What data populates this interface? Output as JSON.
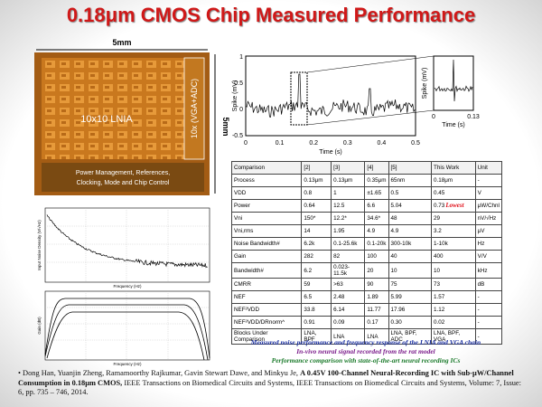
{
  "header": {
    "title": "0.18μm CMOS Chip Measured Performance"
  },
  "chip": {
    "width_label": "5mm",
    "height_label": "5mm",
    "lnia_label": "10x10 LNIA",
    "vga_label": "10x (VGA+ADC)",
    "control_label_1": "Power Management, References,",
    "control_label_2": "Clocking, Mode and Chip Control"
  },
  "spike_plot": {
    "y_label": "Spike (mV)",
    "x_label": "Time (s)",
    "yticks": [
      "1",
      "0.5",
      "0",
      "-0.5"
    ],
    "xticks": [
      "0",
      "0.1",
      "0.2",
      "0.3",
      "0.4",
      "0.5"
    ],
    "inset": {
      "y_label": "Spike (mV)",
      "x_label": "Time (s)",
      "xticks": [
        "0",
        "0.13"
      ]
    }
  },
  "noise_plot": {
    "y_label": "Input Noise Density (V/√Hz)",
    "x_label": "Frequency (Hz)"
  },
  "gain_plot": {
    "y_label": "Gain (dB)",
    "x_label": "Frequency (Hz)"
  },
  "table": {
    "header": [
      "Comparison",
      "[2]",
      "[3]",
      "[4]",
      "[5]",
      "This Work",
      "Unit"
    ],
    "rows": [
      [
        "Process",
        "0.13μm",
        "0.13μm",
        "0.35μm",
        "65nm",
        "0.18μm",
        "-"
      ],
      [
        "VDD",
        "0.8",
        "1",
        "±1.65",
        "0.5",
        "0.45",
        "V"
      ],
      [
        "Power",
        "0.64",
        "12.5",
        "6.6",
        "5.04",
        "0.73",
        "μW/Chnl"
      ],
      [
        "Vni",
        "150*",
        "12.2*",
        "34.6*",
        "48",
        "29",
        "nV/√Hz"
      ],
      [
        "Vni,rms",
        "14",
        "1.95",
        "4.9",
        "4.9",
        "3.2",
        "μV"
      ],
      [
        "Noise Bandwidth#",
        "6.2k",
        "0.1-25.6k",
        "0.1-20k",
        "300-10k",
        "1-10k",
        "Hz"
      ],
      [
        "Gain",
        "282",
        "82",
        "100",
        "40",
        "400",
        "V/V"
      ],
      [
        "Bandwidth#",
        "6.2",
        "0.023-11.5k",
        "20",
        "10",
        "10",
        "kHz"
      ],
      [
        "CMRR",
        "59",
        ">63",
        "90",
        "75",
        "73",
        "dB"
      ],
      [
        "NEF",
        "6.5",
        "2.48",
        "1.89",
        "5.99",
        "1.57",
        "-"
      ],
      [
        "NEF²VDD",
        "33.8",
        "6.14",
        "11.77",
        "17.96",
        "1.12",
        "-"
      ],
      [
        "NEF²VDD/DRnorm^",
        "0.91",
        "0.09",
        "0.17",
        "0.30",
        "0.02",
        "-"
      ],
      [
        "Blocks Under Comparison",
        "LNA, BPF",
        "LNA",
        "LNA",
        "LNA, BPF, ADC",
        "LNA, BPF, VGA",
        "-"
      ]
    ],
    "power_note": "Lowest"
  },
  "captions": [
    "Measured noise performance and frequency response of the LNIA and VGA chain",
    "In-vivo neural signal recorded from the rat model",
    "Performance comparison with state-of-the-art neural recording ICs"
  ],
  "reference": {
    "authors": "Dong Han, Yuanjin Zheng, Ramamoorthy Rajkumar, Gavin Stewart Dawe, and Minkyu Je,",
    "title": "A 0.45V 100-Channel Neural-Recording IC with Sub-μW/Channel Consumption in 0.18μm CMOS,",
    "venue": "IEEE Transactions on Biomedical Circuits and Systems, IEEE Transactions on Biomedical Circuits and Systems, Volume: 7,  Issue: 6, pp. 735 – 746, 2014."
  }
}
